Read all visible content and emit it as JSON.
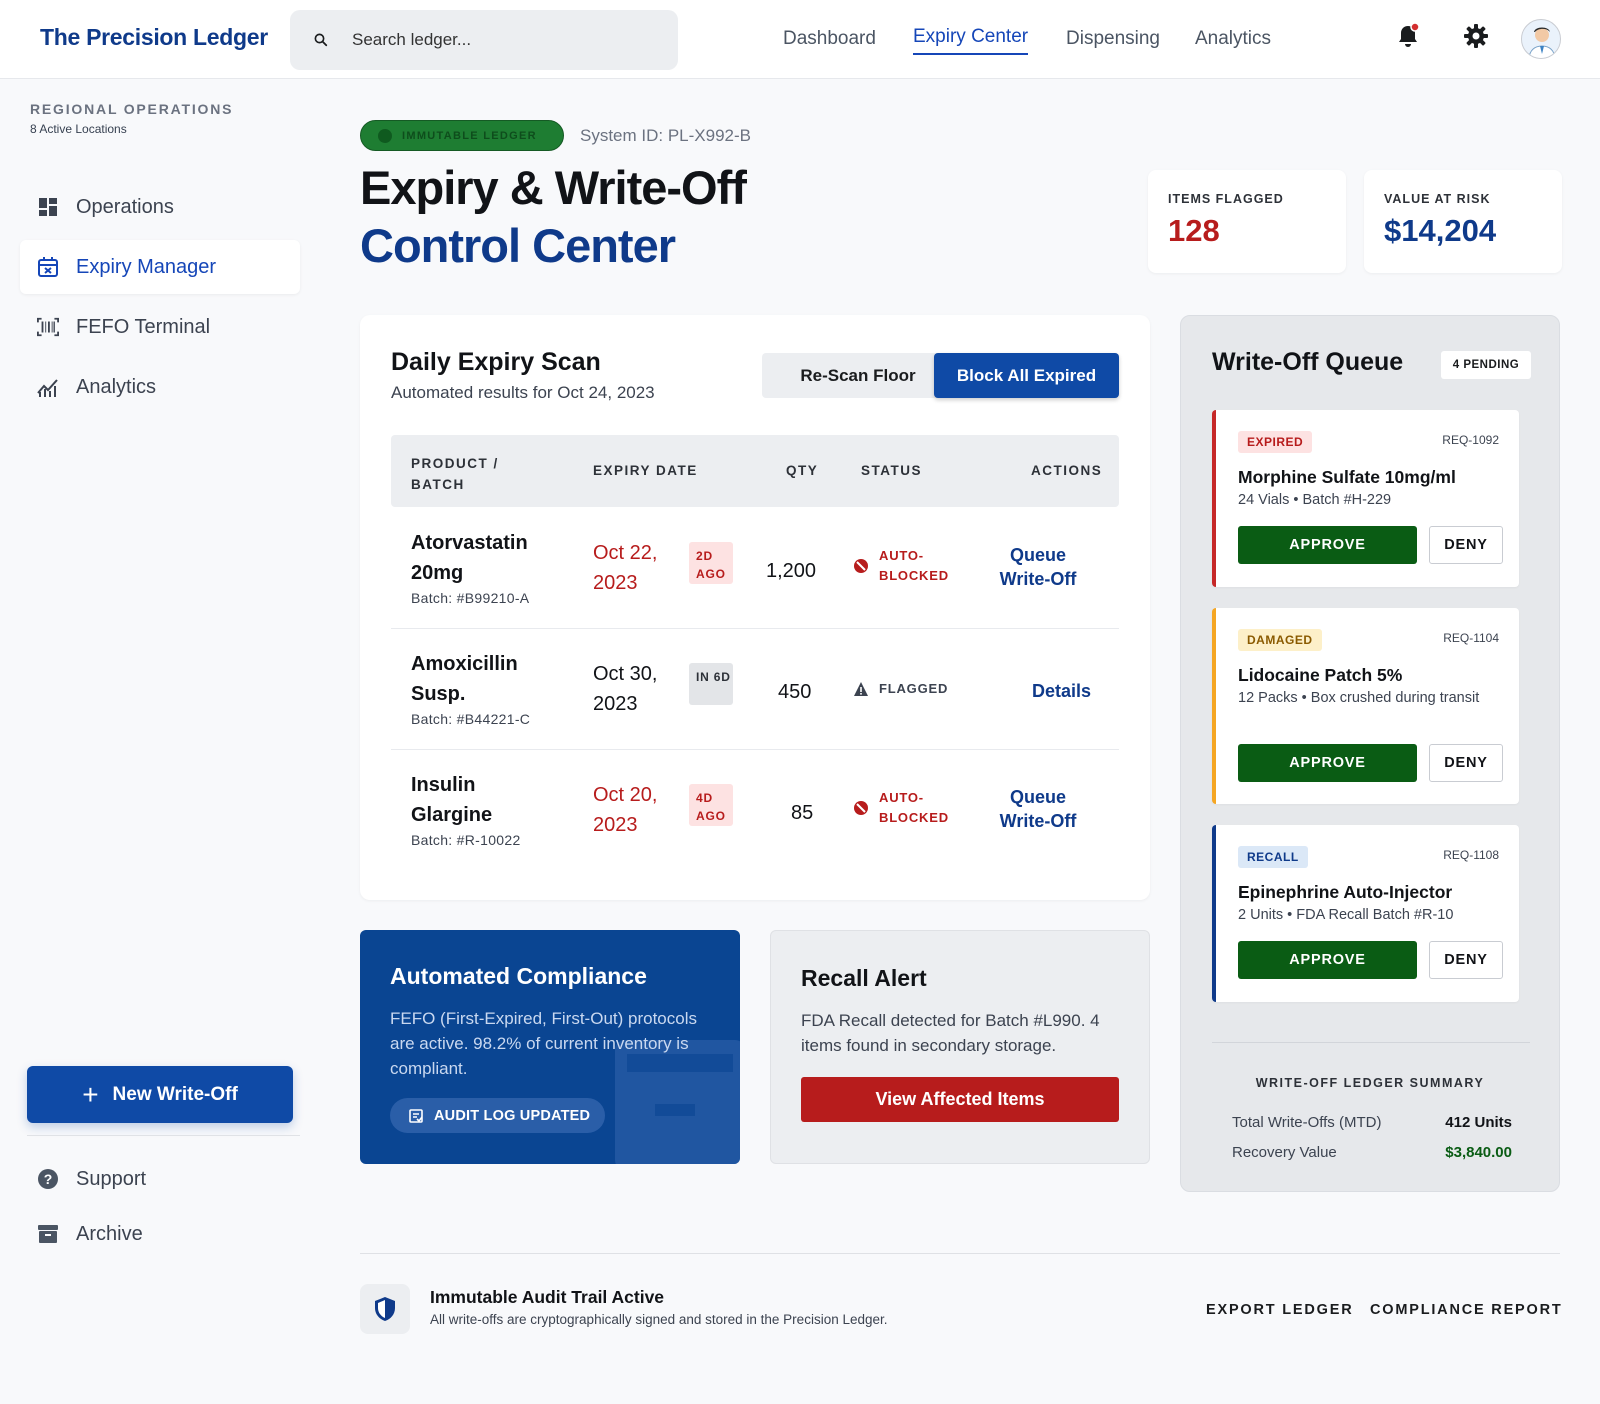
{
  "brand": "The Precision Ledger",
  "search": {
    "placeholder": "Search ledger..."
  },
  "nav": {
    "dashboard": "Dashboard",
    "expiry_center": "Expiry Center",
    "dispensing": "Dispensing",
    "analytics": "Analytics"
  },
  "sidebar": {
    "title": "REGIONAL OPERATIONS",
    "subtitle": "8 Active Locations",
    "items": [
      {
        "label": "Operations",
        "icon": "dashboard-icon"
      },
      {
        "label": "Expiry Manager",
        "icon": "calendar-x-icon"
      },
      {
        "label": "FEFO Terminal",
        "icon": "barcode-icon"
      },
      {
        "label": "Analytics",
        "icon": "chart-icon"
      }
    ],
    "new_button": "New Write-Off",
    "support": "Support",
    "archive": "Archive"
  },
  "header": {
    "badge": "IMMUTABLE LEDGER",
    "system_id": "System ID: PL-X992-B",
    "title_line1": "Expiry & Write-Off",
    "title_line2": "Control Center"
  },
  "stats": {
    "items_flagged_label": "ITEMS FLAGGED",
    "items_flagged_value": "128",
    "value_at_risk_label": "VALUE AT RISK",
    "value_at_risk_value": "$14,204"
  },
  "scan": {
    "title": "Daily Expiry Scan",
    "subtitle": "Automated results for Oct 24, 2023",
    "rescan_button": "Re-Scan Floor",
    "block_button": "Block All Expired",
    "columns": {
      "product": "PRODUCT / BATCH",
      "expiry": "EXPIRY DATE",
      "qty": "QTY",
      "status": "STATUS",
      "actions": "ACTIONS"
    },
    "rows": [
      {
        "name": "Atorvastatin 20mg",
        "batch": "Batch: #B99210-A",
        "expiry": "Oct 22, 2023",
        "tag": "2D AGO",
        "qty": "1,200",
        "status": "AUTO-BLOCKED",
        "action": "Queue Write-Off"
      },
      {
        "name": "Amoxicillin Susp.",
        "batch": "Batch: #B44221-C",
        "expiry": "Oct 30, 2023",
        "tag": "IN 6D",
        "qty": "450",
        "status": "FLAGGED",
        "action": "Details"
      },
      {
        "name": "Insulin Glargine",
        "batch": "Batch: #R-10022",
        "expiry": "Oct 20, 2023",
        "tag": "4D AGO",
        "qty": "85",
        "status": "AUTO-BLOCKED",
        "action": "Queue Write-Off"
      }
    ]
  },
  "compliance": {
    "title": "Automated Compliance",
    "desc": "FEFO (First-Expired, First-Out) protocols are active. 98.2% of current inventory is compliant.",
    "pill": "AUDIT LOG UPDATED"
  },
  "recall": {
    "title": "Recall Alert",
    "desc": "FDA Recall detected for Batch #L990. 4 items found in secondary storage.",
    "button": "View Affected Items"
  },
  "queue": {
    "title": "Write-Off Queue",
    "pending": "4 PENDING",
    "cards": [
      {
        "tag": "EXPIRED",
        "req": "REQ-1092",
        "name": "Morphine Sulfate 10mg/ml",
        "desc": "24 Vials • Batch #H-229"
      },
      {
        "tag": "DAMAGED",
        "req": "REQ-1104",
        "name": "Lidocaine Patch 5%",
        "desc": "12 Packs • Box crushed during transit"
      },
      {
        "tag": "RECALL",
        "req": "REQ-1108",
        "name": "Epinephrine Auto-Injector",
        "desc": "2 Units • FDA Recall Batch #R-10"
      }
    ],
    "approve": "APPROVE",
    "deny": "DENY",
    "summary_title": "WRITE-OFF LEDGER SUMMARY",
    "total_label": "Total Write-Offs (MTD)",
    "total_value": "412 Units",
    "recovery_label": "Recovery Value",
    "recovery_value": "$3,840.00"
  },
  "footer": {
    "title": "Immutable Audit Trail Active",
    "subtitle": "All write-offs are cryptographically signed and stored in the Precision Ledger.",
    "export": "EXPORT LEDGER",
    "report": "COMPLIANCE REPORT"
  },
  "colors": {
    "primary": "#0f4aa6",
    "brand": "#0f3a8a",
    "danger": "#b71c1c",
    "success": "#0a5c14",
    "warning": "#f5a623"
  }
}
